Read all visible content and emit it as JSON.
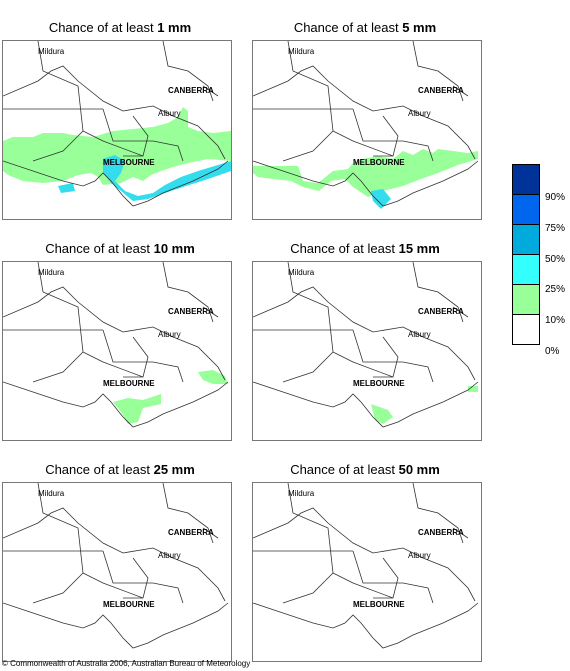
{
  "panels": [
    {
      "prefix": "Chance of at least ",
      "amount": "1 mm"
    },
    {
      "prefix": "Chance of at least ",
      "amount": "5 mm"
    },
    {
      "prefix": "Chance of at least ",
      "amount": "10 mm"
    },
    {
      "prefix": "Chance of at least ",
      "amount": "15 mm"
    },
    {
      "prefix": "Chance of at least ",
      "amount": "25 mm"
    },
    {
      "prefix": "Chance of at least ",
      "amount": "50 mm"
    }
  ],
  "places": {
    "mildura": "Mildura",
    "canberra": "CANBERRA",
    "albury": "Albury",
    "melbourne": "MELBOURNE"
  },
  "legend": {
    "colors": [
      "#003399",
      "#0066ee",
      "#00aadd",
      "#33ffff",
      "#99ff99",
      "#ffffff"
    ],
    "labels": [
      "90%",
      "75%",
      "50%",
      "25%",
      "10%",
      "0%"
    ]
  },
  "footer": "© Commonwealth of Australia 2006, Australian Bureau of Meteorology"
}
